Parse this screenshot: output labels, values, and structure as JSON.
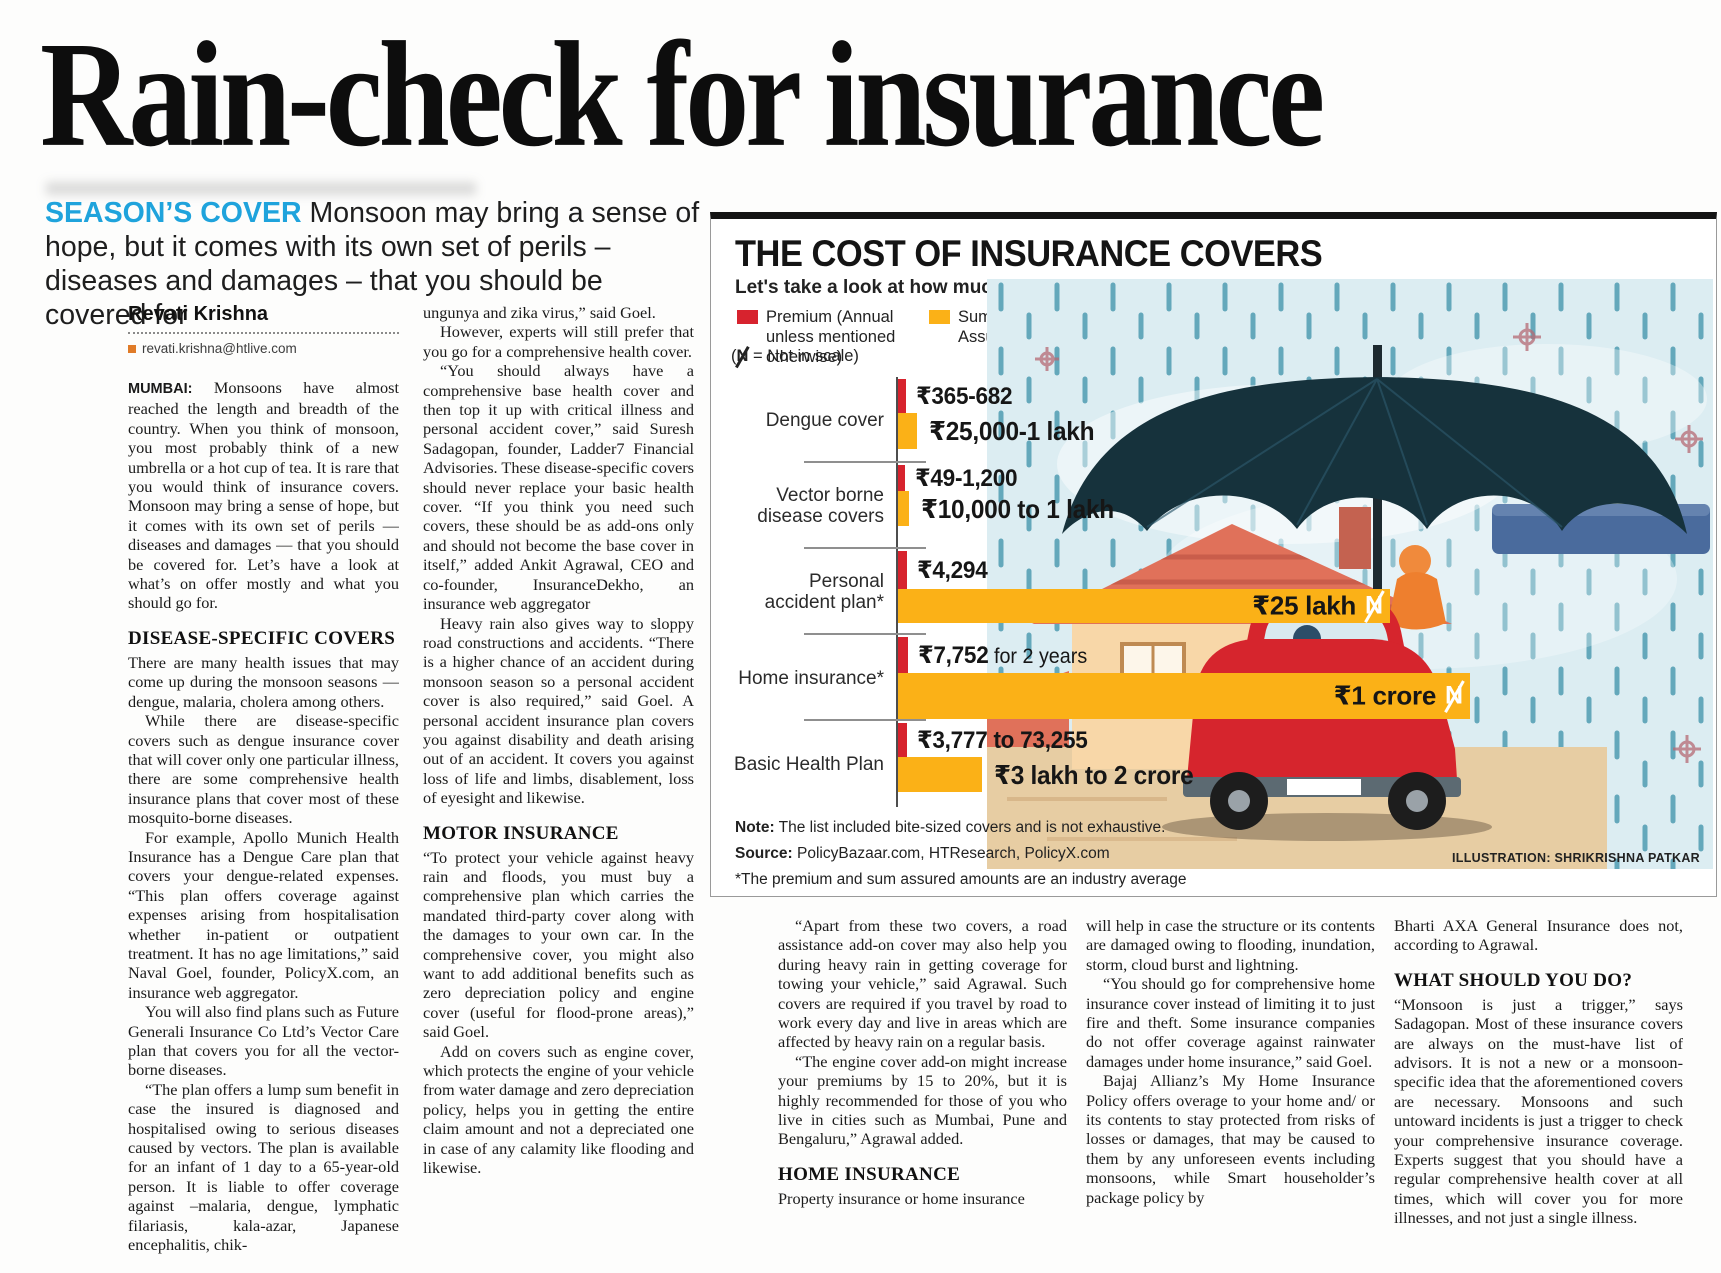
{
  "headline": "Rain-check for insurance",
  "standfirst": {
    "kicker": "SEASON’S COVER",
    "text": " Monsoon may bring a sense of hope, but it comes with its own set of perils – diseases and damages – that you should be covered for"
  },
  "byline": {
    "author": "Revati Krishna",
    "email": "revati.krishna@htlive.com"
  },
  "article": {
    "left1": [
      {
        "lead": "MUMBAI:",
        "text": "Monsoons have almost reached the length and breadth of the country. When you think of monsoon, you most probably think of a new umbrella or a hot cup of tea. It is rare that you would think of insurance covers. Monsoon may bring a sense of hope, but it comes with its own set of perils — diseases and damages — that you should be covered for. Let’s have a look at what’s on offer mostly and what you should go for."
      },
      {
        "h": "DISEASE-SPECIFIC COVERS"
      },
      {
        "text": "There are many health issues that may come up during the monsoon seasons — dengue, malaria, cholera among others."
      },
      {
        "ind": true,
        "text": "While there are disease-specific covers such as dengue insurance cover that will cover only one particular illness, there are some comprehensive health insurance plans that cover most of these mosquito-borne diseases."
      },
      {
        "ind": true,
        "text": "For example, Apollo Munich Health Insurance has a Dengue Care plan that covers your dengue-related expenses. “This plan offers coverage against expenses arising from hospitalisation whether in-patient or outpatient treatment. It has no age limitations,” said Naval Goel, founder, PolicyX.com, an insurance web aggregator."
      },
      {
        "ind": true,
        "text": "You will also find plans such as Future Generali Insurance Co Ltd’s Vector Care plan that covers you for all the vector-borne diseases."
      },
      {
        "ind": true,
        "text": "“The plan offers a lump sum benefit in case the insured is diagnosed and hospitalised owing to serious diseases caused by vectors. The plan is available for an infant of 1 day to a 65-year-old person. It is liable to offer coverage against –malaria, dengue, lymphatic filariasis, kala-azar, Japanese encephalitis, chik-"
      }
    ],
    "left2": [
      {
        "text": "ungunya and zika virus,” said Goel."
      },
      {
        "ind": true,
        "text": "However, experts will still prefer that you go for a comprehensive health cover."
      },
      {
        "ind": true,
        "text": "“You should always have a comprehensive base health cover and then top it up with critical illness and personal accident cover,” said Suresh Sadagopan, founder, Ladder7 Financial Advisories. These disease-specific covers should never replace your basic health cover. “If you think you need such covers, these should be as add-ons only and should not become the base cover in itself,” added Ankit Agrawal, CEO and co-founder, InsuranceDekho, an insurance web aggregator"
      },
      {
        "ind": true,
        "text": "Heavy rain also gives way to sloppy road constructions and accidents. “There is a higher chance of an accident during monsoon season so a personal accident cover is also required,” said Goel. A personal accident insurance plan covers you against disability and death arising out of an accident. It covers you against loss of life and limbs, disablement, loss of eyesight and likewise."
      },
      {
        "h": "MOTOR INSURANCE"
      },
      {
        "text": "“To protect your vehicle against heavy rain and floods, you must buy a comprehensive plan which carries the mandated third-party cover along with the damages to your own car. In the comprehensive cover, you might also want to add additional benefits such as zero depreciation policy and engine cover (useful for flood-prone areas),” said Goel."
      },
      {
        "ind": true,
        "text": "Add on covers such as engine cover, which protects the engine of your vehicle from water damage and zero depreciation policy, helps you in getting the entire claim amount and not a depreciated one in case of any calamity like flooding and likewise."
      }
    ],
    "bottom1": [
      {
        "ind": true,
        "text": "“Apart from these two covers, a road assistance add-on cover may also help you during heavy rain in getting coverage for towing your vehicle,” said Agrawal. Such covers are required if you travel by road to work every day and live in areas which are affected by heavy rain on a regular basis."
      },
      {
        "ind": true,
        "text": "“The engine cover add-on might increase your premiums by 15 to 20%, but it is highly recommended for those of you who live in cities such as Mumbai, Pune and Bengaluru,” Agrawal added."
      },
      {
        "h": "HOME INSURANCE"
      },
      {
        "text": "Property insurance or home insurance"
      }
    ],
    "bottom2": [
      {
        "text": "will help in case the structure or its contents are damaged owing to flooding, inundation, storm, cloud burst and lightning."
      },
      {
        "ind": true,
        "text": "“You should go for comprehensive home insurance cover instead of limiting it to just fire and theft. Some insurance companies do not offer coverage against rainwater damages under home insurance,” said Goel."
      },
      {
        "ind": true,
        "text": "Bajaj Allianz’s My Home Insurance Policy offers overage to your home and/ or its contents to stay protected from risks of losses or damages, that may be caused to them by any unforeseen events including monsoons, while Smart householder’s package policy by"
      }
    ],
    "bottom3": [
      {
        "text": "Bharti AXA General Insurance does not, according to Agrawal."
      },
      {
        "h": "WHAT SHOULD YOU DO?"
      },
      {
        "text": "“Monsoon is just a trigger,” says Sadagopan. Most of these insurance covers are always on the must-have list of advisors. It is not a new or a monsoon-specific idea that the aforementioned covers are necessary. Monsoons and such untoward incidents is just a trigger to check your comprehensive insurance coverage. Experts suggest that you should have a regular comprehensive health cover at all times, which will cover you for more illnesses, and not just a single illness."
      }
    ]
  },
  "chart_data": {
    "type": "bar",
    "orientation": "horizontal",
    "title": "THE COST OF INSURANCE COVERS",
    "subtitle": "Let's take a look at how much will these insurance covers will cost you on an average in the market",
    "legend": [
      {
        "name": "Premium (Annual unless mentioned otherwise)",
        "color": "#d7232e"
      },
      {
        "name": "Sum Assured",
        "color": "#fbb117"
      }
    ],
    "scale_note_prefix": "(",
    "scale_note_symbol": "N",
    "scale_note_suffix": " = Not in scale)",
    "categories": [
      "Dengue cover",
      "Vector borne disease covers",
      "Personal accident plan*",
      "Home insurance*",
      "Basic Health Plan"
    ],
    "series": [
      {
        "name": "Premium (Annual unless mentioned otherwise)",
        "values": [
          "₹365-682",
          "₹49-1,200",
          "₹4,294",
          "₹7,752 for 2 years",
          "₹3,777 to 73,255"
        ]
      },
      {
        "name": "Sum Assured",
        "values": [
          "₹25,000-1 lakh",
          "₹10,000 to 1 lakh",
          "₹25 lakh",
          "₹1 crore",
          "₹3 lakh to 2 crore"
        ]
      }
    ],
    "not_in_scale_rows": [
      2,
      3
    ],
    "note_label": "Note:",
    "note": "The list included bite-sized covers and is not exhaustive.",
    "source_label": "Source:",
    "source": "PolicyBazaar.com, HTResearch, PolicyX.com",
    "footnote": "*The premium and sum assured amounts are an industry average",
    "credit": "ILLUSTRATION: SHRIKRISHNA PATKAR"
  }
}
